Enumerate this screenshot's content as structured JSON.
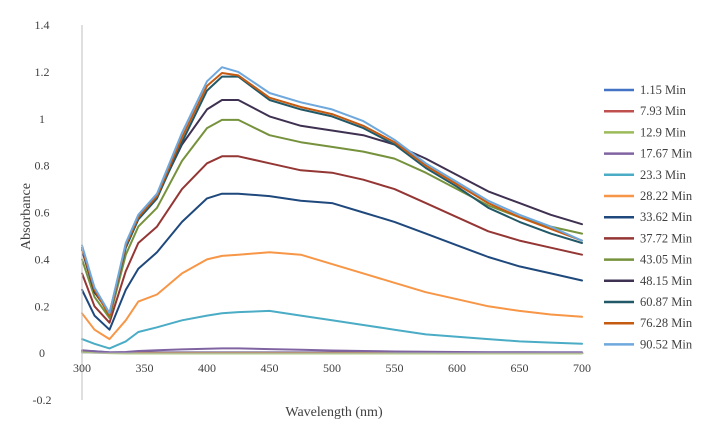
{
  "chart_data": {
    "type": "line",
    "title": "",
    "xlabel": "Wavelength (nm)",
    "ylabel": "Absorbance",
    "xlim": [
      300,
      700
    ],
    "ylim": [
      -0.2,
      1.4
    ],
    "xticks": [
      "300",
      "350",
      "400",
      "450",
      "500",
      "550",
      "600",
      "650",
      "700"
    ],
    "yticks": [
      "-0.2",
      "0",
      "0.2",
      "0.4",
      "0.6",
      "0.8",
      "1",
      "1.2",
      "1.4"
    ],
    "grid": false,
    "legend_position": "right",
    "x": [
      300,
      310,
      322,
      335,
      345,
      360,
      380,
      400,
      412,
      425,
      450,
      475,
      500,
      525,
      550,
      575,
      600,
      625,
      650,
      675,
      700
    ],
    "series": [
      {
        "name": "1.15 Min",
        "color": "#4472c4",
        "values": [
          0.01,
          0.008,
          0.004,
          0.003,
          0.003,
          0.003,
          0.003,
          0.003,
          0.003,
          0.003,
          0.003,
          0.003,
          0.003,
          0.003,
          0.003,
          0.003,
          0.003,
          0.003,
          0.003,
          0.003,
          0.003
        ]
      },
      {
        "name": "7.93 Min",
        "color": "#c0504d",
        "values": [
          0.008,
          0.006,
          0.002,
          0.002,
          0.002,
          0.002,
          0.002,
          0.002,
          0.002,
          0.002,
          0.002,
          0.002,
          0.002,
          0.002,
          0.002,
          0.002,
          0.002,
          0.002,
          0.002,
          0.002,
          0.002
        ]
      },
      {
        "name": "12.9 Min",
        "color": "#9bbb59",
        "values": [
          0.004,
          0.002,
          0.0,
          -0.001,
          -0.001,
          -0.001,
          -0.001,
          -0.001,
          -0.001,
          -0.001,
          -0.001,
          -0.001,
          -0.001,
          -0.001,
          -0.001,
          -0.001,
          -0.001,
          -0.001,
          -0.001,
          -0.001,
          -0.001
        ]
      },
      {
        "name": "17.67 Min",
        "color": "#8064a2",
        "values": [
          0.012,
          0.008,
          0.003,
          0.005,
          0.009,
          0.012,
          0.016,
          0.019,
          0.02,
          0.02,
          0.017,
          0.014,
          0.011,
          0.009,
          0.007,
          0.006,
          0.005,
          0.004,
          0.004,
          0.003,
          0.003
        ]
      },
      {
        "name": "23.3 Min",
        "color": "#4bacc6",
        "values": [
          0.06,
          0.04,
          0.02,
          0.05,
          0.09,
          0.11,
          0.14,
          0.16,
          0.17,
          0.175,
          0.18,
          0.16,
          0.14,
          0.12,
          0.1,
          0.08,
          0.07,
          0.06,
          0.05,
          0.045,
          0.04
        ]
      },
      {
        "name": "28.22 Min",
        "color": "#f79646",
        "values": [
          0.17,
          0.1,
          0.06,
          0.14,
          0.22,
          0.25,
          0.34,
          0.4,
          0.415,
          0.42,
          0.43,
          0.42,
          0.38,
          0.34,
          0.3,
          0.26,
          0.23,
          0.2,
          0.18,
          0.165,
          0.155
        ]
      },
      {
        "name": "33.62 Min",
        "color": "#1f497d",
        "values": [
          0.27,
          0.16,
          0.1,
          0.27,
          0.36,
          0.43,
          0.56,
          0.66,
          0.68,
          0.68,
          0.67,
          0.65,
          0.64,
          0.6,
          0.56,
          0.51,
          0.46,
          0.41,
          0.37,
          0.34,
          0.31
        ]
      },
      {
        "name": "37.72 Min",
        "color": "#943634",
        "values": [
          0.34,
          0.2,
          0.13,
          0.35,
          0.47,
          0.54,
          0.7,
          0.81,
          0.84,
          0.84,
          0.81,
          0.78,
          0.77,
          0.74,
          0.7,
          0.64,
          0.58,
          0.52,
          0.48,
          0.45,
          0.42
        ]
      },
      {
        "name": "43.05 Min",
        "color": "#76923c",
        "values": [
          0.4,
          0.24,
          0.15,
          0.42,
          0.54,
          0.62,
          0.82,
          0.96,
          0.995,
          0.995,
          0.93,
          0.9,
          0.88,
          0.86,
          0.83,
          0.77,
          0.7,
          0.63,
          0.58,
          0.54,
          0.51
        ]
      },
      {
        "name": "48.15 Min",
        "color": "#3f3151",
        "values": [
          0.44,
          0.26,
          0.17,
          0.46,
          0.58,
          0.67,
          0.89,
          1.04,
          1.08,
          1.08,
          1.01,
          0.97,
          0.95,
          0.93,
          0.89,
          0.83,
          0.76,
          0.69,
          0.64,
          0.59,
          0.55
        ]
      },
      {
        "name": "60.87 Min",
        "color": "#215968",
        "values": [
          0.45,
          0.27,
          0.16,
          0.45,
          0.57,
          0.66,
          0.9,
          1.12,
          1.18,
          1.18,
          1.08,
          1.04,
          1.01,
          0.96,
          0.89,
          0.79,
          0.71,
          0.62,
          0.56,
          0.51,
          0.47
        ]
      },
      {
        "name": "76.28 Min",
        "color": "#c55a11",
        "values": [
          0.45,
          0.27,
          0.16,
          0.46,
          0.58,
          0.67,
          0.92,
          1.14,
          1.195,
          1.185,
          1.09,
          1.05,
          1.02,
          0.97,
          0.9,
          0.8,
          0.72,
          0.64,
          0.58,
          0.53,
          0.48
        ]
      },
      {
        "name": "90.52 Min",
        "color": "#6fa8dc",
        "values": [
          0.46,
          0.28,
          0.17,
          0.47,
          0.59,
          0.68,
          0.94,
          1.16,
          1.22,
          1.2,
          1.11,
          1.07,
          1.04,
          0.99,
          0.91,
          0.81,
          0.73,
          0.65,
          0.59,
          0.54,
          0.48
        ]
      }
    ]
  }
}
